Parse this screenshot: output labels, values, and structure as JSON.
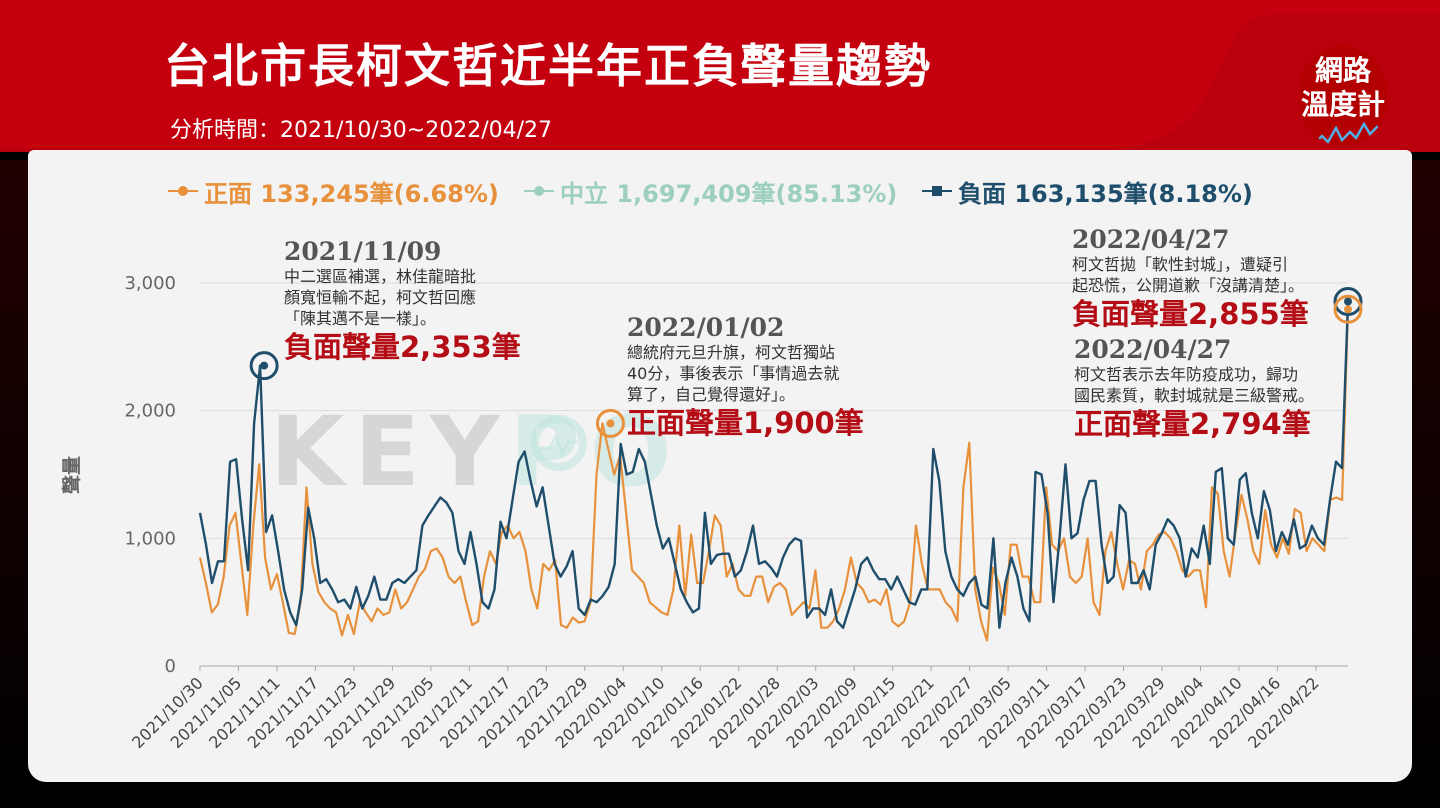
{
  "header": {
    "title": "台北市長柯文哲近半年正負聲量趨勢",
    "subtitle": "分析時間：2021/10/30~2022/04/27",
    "logo_line1": "網路",
    "logo_line2": "溫度計"
  },
  "watermark": {
    "text": "KEY",
    "text2": "PO"
  },
  "colors": {
    "positive": "#e8913c",
    "neutral": "#9ccfc0",
    "negative": "#1f4e6c",
    "accent": "#b50d16",
    "banner": "#c4000f"
  },
  "legend": {
    "positive": "正面 133,245筆(6.68%)",
    "neutral": "中立 1,697,409筆(85.13%)",
    "negative": "負面 163,135筆(8.18%)"
  },
  "annotations": [
    {
      "date": "2021/11/09",
      "lines": [
        "中二選區補選，林佳龍暗批",
        "顏寬恒輸不起，柯文哲回應",
        "「陳其邁不是一樣」。"
      ],
      "volume": "負面聲量2,353筆"
    },
    {
      "date": "2022/01/02",
      "lines": [
        "總統府元旦升旗，柯文哲獨站",
        "40分，事後表示「事情過去就",
        "算了，自己覺得還好」。"
      ],
      "volume": "正面聲量1,900筆"
    },
    {
      "date": "2022/04/27",
      "lines": [
        "柯文哲拋「軟性封城」，遭疑引",
        "起恐慌，公開道歉「沒講清楚」。"
      ],
      "volume": "負面聲量2,855筆"
    },
    {
      "date": "2022/04/27",
      "lines": [
        "柯文哲表示去年防疫成功，歸功",
        "國民素質，軟封城就是三級警戒。"
      ],
      "volume": "正面聲量2,794筆"
    }
  ],
  "chart_data": {
    "type": "line",
    "ylabel": "聲量",
    "ylim": [
      0,
      3000
    ],
    "yticks": [
      "0",
      "1,000",
      "2,000",
      "3,000"
    ],
    "x_tick_labels": [
      "2021/10/30",
      "2021/11/05",
      "2021/11/11",
      "2021/11/17",
      "2021/11/23",
      "2021/11/29",
      "2021/12/05",
      "2021/12/11",
      "2021/12/17",
      "2021/12/23",
      "2021/12/29",
      "2022/01/04",
      "2022/01/10",
      "2022/01/16",
      "2022/01/22",
      "2022/01/28",
      "2022/02/03",
      "2022/02/09",
      "2022/02/15",
      "2022/02/21",
      "2022/02/27",
      "2022/03/05",
      "2022/03/11",
      "2022/03/17",
      "2022/03/23",
      "2022/03/29",
      "2022/04/04",
      "2022/04/10",
      "2022/04/16",
      "2022/04/22"
    ],
    "x_start": "2021/10/30",
    "x_end": "2022/04/27",
    "series": [
      {
        "name": "負面",
        "values": [
          1200,
          950,
          650,
          820,
          820,
          1600,
          1620,
          1150,
          750,
          1900,
          2353,
          1050,
          1180,
          900,
          600,
          420,
          320,
          600,
          1240,
          1000,
          650,
          680,
          600,
          500,
          520,
          450,
          620,
          450,
          550,
          700,
          520,
          520,
          650,
          680,
          650,
          700,
          750,
          1100,
          1180,
          1250,
          1320,
          1280,
          1200,
          900,
          800,
          1050,
          800,
          500,
          450,
          600,
          1130,
          1000,
          1300,
          1600,
          1680,
          1450,
          1250,
          1400,
          1100,
          800,
          700,
          780,
          900,
          450,
          400,
          520,
          500,
          550,
          620,
          800,
          1740,
          1500,
          1520,
          1700,
          1600,
          1350,
          1100,
          920,
          1000,
          800,
          600,
          500,
          420,
          450,
          1200,
          800,
          870,
          880,
          880,
          700,
          750,
          900,
          1100,
          800,
          820,
          770,
          700,
          850,
          950,
          1000,
          980,
          380,
          450,
          450,
          400,
          600,
          350,
          300,
          450,
          600,
          800,
          850,
          750,
          680,
          680,
          600,
          700,
          600,
          500,
          480,
          600,
          600,
          1700,
          1450,
          900,
          700,
          600,
          550,
          650,
          700,
          480,
          450,
          1000,
          300,
          650,
          850,
          700,
          450,
          350,
          1520,
          1500,
          1200,
          500,
          1000,
          1580,
          1000,
          1040,
          1300,
          1450,
          1450,
          950,
          650,
          700,
          1260,
          1200,
          650,
          650,
          750,
          600,
          950,
          1040,
          1150,
          1100,
          1000,
          700,
          920,
          850,
          1100,
          800,
          1520,
          1550,
          1000,
          950,
          1460,
          1510,
          1200,
          1000,
          1370,
          1220,
          900,
          1050,
          950,
          1150,
          920,
          950,
          1100,
          1000,
          950,
          1300,
          1600,
          1550,
          2855
        ]
      },
      {
        "name": "正面",
        "values": [
          850,
          650,
          420,
          480,
          700,
          1100,
          1200,
          800,
          400,
          1100,
          1580,
          850,
          600,
          720,
          500,
          260,
          250,
          500,
          1400,
          800,
          580,
          500,
          450,
          420,
          240,
          400,
          250,
          500,
          420,
          350,
          450,
          400,
          420,
          600,
          450,
          500,
          600,
          700,
          760,
          900,
          920,
          850,
          700,
          650,
          700,
          500,
          320,
          350,
          700,
          900,
          800,
          1050,
          1100,
          1000,
          1050,
          900,
          600,
          450,
          800,
          750,
          830,
          320,
          300,
          380,
          340,
          350,
          500,
          1500,
          1900,
          1700,
          1500,
          1650,
          1200,
          750,
          700,
          650,
          500,
          460,
          420,
          400,
          600,
          1100,
          550,
          1030,
          650,
          650,
          900,
          1180,
          1100,
          700,
          800,
          600,
          550,
          550,
          700,
          700,
          500,
          620,
          650,
          600,
          400,
          450,
          500,
          450,
          750,
          300,
          300,
          350,
          450,
          600,
          850,
          650,
          600,
          500,
          520,
          480,
          600,
          350,
          310,
          350,
          500,
          1100,
          800,
          600,
          600,
          600,
          500,
          450,
          350,
          1400,
          1750,
          600,
          350,
          200,
          770,
          650,
          400,
          950,
          950,
          700,
          700,
          500,
          500,
          1400,
          950,
          900,
          1000,
          700,
          650,
          700,
          1000,
          500,
          400,
          900,
          1050,
          800,
          600,
          830,
          800,
          600,
          900,
          950,
          1030,
          1050,
          1000,
          900,
          750,
          700,
          750,
          750,
          460,
          1400,
          1350,
          900,
          700,
          1050,
          1340,
          1150,
          900,
          800,
          1220,
          950,
          850,
          1000,
          880,
          1230,
          1200,
          900,
          1000,
          950,
          900,
          1300,
          1320,
          1300,
          2794
        ]
      }
    ],
    "highlights": [
      {
        "series": "負面",
        "date": "2021/11/09",
        "value": 2353
      },
      {
        "series": "正面",
        "date": "2022/01/02",
        "value": 1900
      },
      {
        "series": "負面",
        "date": "2022/04/27",
        "value": 2855
      },
      {
        "series": "正面",
        "date": "2022/04/27",
        "value": 2794
      }
    ]
  }
}
